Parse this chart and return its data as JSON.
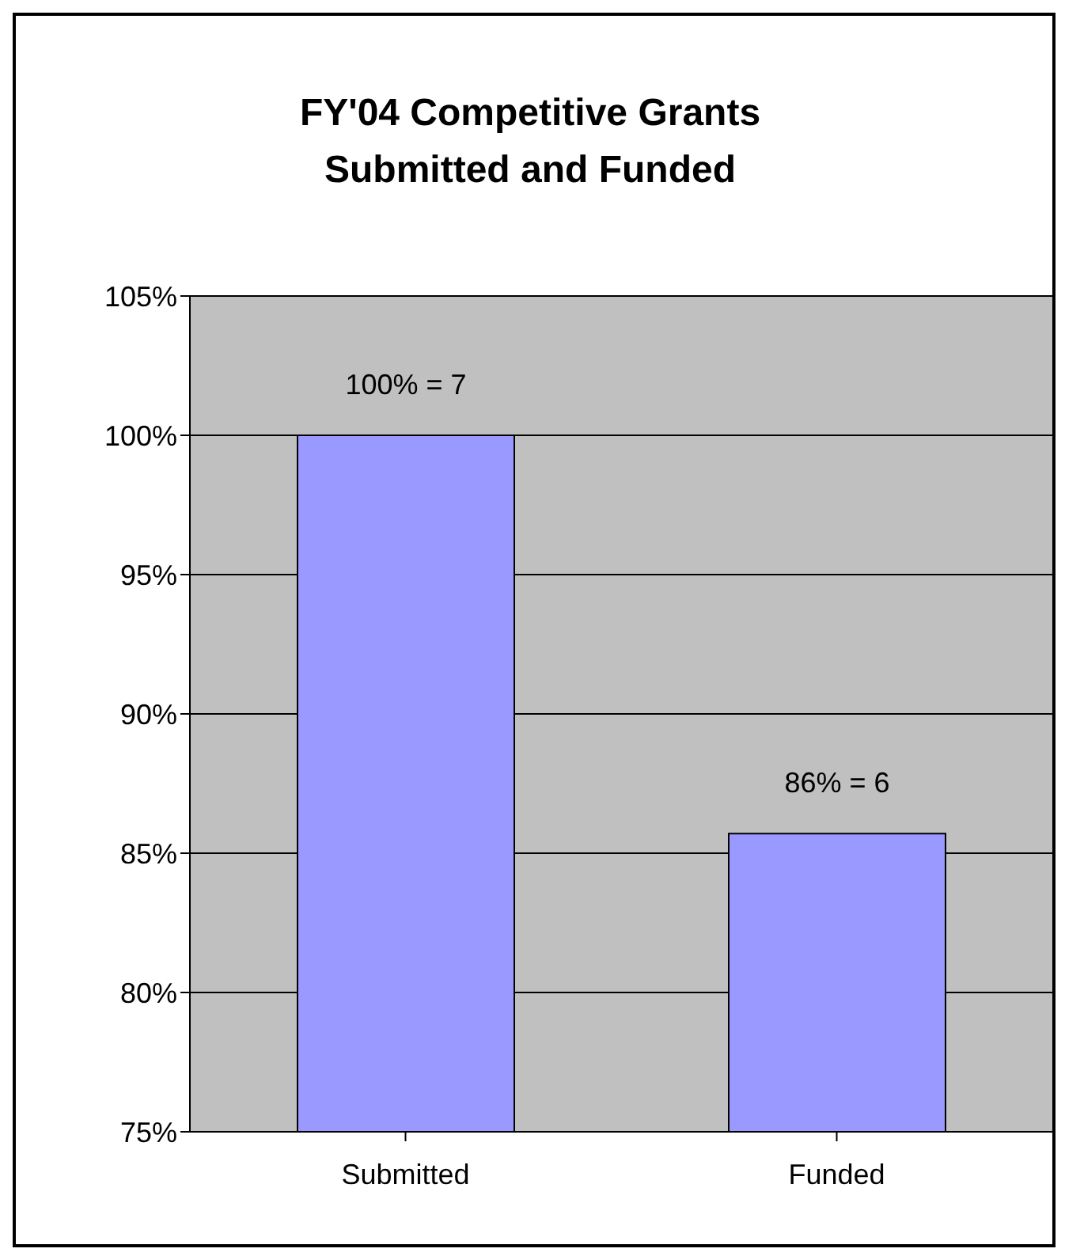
{
  "chart_data": {
    "type": "bar",
    "title": "FY'04 Competitive Grants Submitted and Funded",
    "categories": [
      "Submitted",
      "Funded"
    ],
    "values": [
      100,
      85.7
    ],
    "value_labels": [
      "100% = 7",
      "86% = 6"
    ],
    "color": "#9999ff",
    "ylim": [
      75,
      105
    ],
    "yticks": [
      {
        "value": 75,
        "label": "75%"
      },
      {
        "value": 80,
        "label": "80%"
      },
      {
        "value": 85,
        "label": "85%"
      },
      {
        "value": 90,
        "label": "90%"
      },
      {
        "value": 95,
        "label": "95%"
      },
      {
        "value": 100,
        "label": "100%"
      },
      {
        "value": 105,
        "label": "105%"
      }
    ],
    "grid": "y",
    "legend": false
  }
}
